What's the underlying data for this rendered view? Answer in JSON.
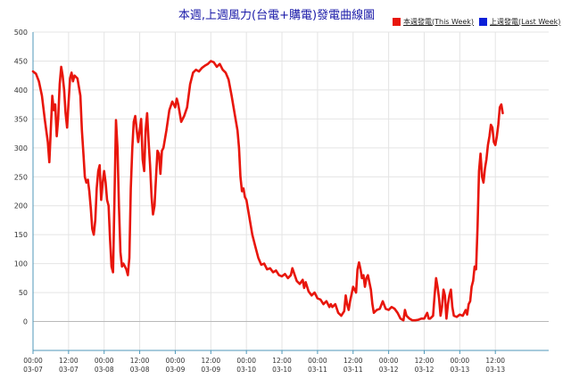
{
  "chart_data": {
    "type": "line",
    "title": "本週,上週風力(台電+購電)發電曲線圖",
    "xlabel": "",
    "ylabel": "",
    "ylim": [
      -50,
      500
    ],
    "yticks": [
      0,
      50,
      100,
      150,
      200,
      250,
      300,
      350,
      400,
      450,
      500
    ],
    "xrange": [
      0,
      174
    ],
    "xticks": [
      {
        "x": 0,
        "time": "00:00",
        "date": "03-07"
      },
      {
        "x": 12,
        "time": "12:00",
        "date": "03-07"
      },
      {
        "x": 24,
        "time": "00:00",
        "date": "03-08"
      },
      {
        "x": 36,
        "time": "12:00",
        "date": "03-08"
      },
      {
        "x": 48,
        "time": "00:00",
        "date": "03-09"
      },
      {
        "x": 60,
        "time": "12:00",
        "date": "03-09"
      },
      {
        "x": 72,
        "time": "00:00",
        "date": "03-10"
      },
      {
        "x": 84,
        "time": "12:00",
        "date": "03-10"
      },
      {
        "x": 96,
        "time": "00:00",
        "date": "03-11"
      },
      {
        "x": 108,
        "time": "12:00",
        "date": "03-11"
      },
      {
        "x": 120,
        "time": "00:00",
        "date": "03-12"
      },
      {
        "x": 132,
        "time": "12:00",
        "date": "03-12"
      },
      {
        "x": 144,
        "time": "00:00",
        "date": "03-13"
      },
      {
        "x": 156,
        "time": "12:00",
        "date": "03-13"
      }
    ],
    "grid": true,
    "legend_position": "top-right",
    "series": [
      {
        "name": "本週發電(This Week)",
        "color": "#e8160c",
        "points": [
          [
            0,
            432
          ],
          [
            1,
            428
          ],
          [
            2,
            415
          ],
          [
            3,
            390
          ],
          [
            4,
            348
          ],
          [
            5,
            310
          ],
          [
            5.5,
            275
          ],
          [
            6,
            330
          ],
          [
            6.5,
            390
          ],
          [
            7,
            365
          ],
          [
            7.5,
            375
          ],
          [
            8,
            320
          ],
          [
            8.5,
            350
          ],
          [
            9,
            410
          ],
          [
            9.5,
            440
          ],
          [
            10,
            425
          ],
          [
            10.5,
            400
          ],
          [
            11,
            360
          ],
          [
            11.5,
            335
          ],
          [
            12,
            380
          ],
          [
            12.5,
            420
          ],
          [
            13,
            430
          ],
          [
            13.5,
            415
          ],
          [
            14,
            425
          ],
          [
            15,
            420
          ],
          [
            16,
            390
          ],
          [
            16.5,
            330
          ],
          [
            17,
            290
          ],
          [
            17.5,
            250
          ],
          [
            18,
            240
          ],
          [
            18.5,
            245
          ],
          [
            19,
            225
          ],
          [
            19.5,
            195
          ],
          [
            20,
            160
          ],
          [
            20.5,
            150
          ],
          [
            21,
            175
          ],
          [
            21.5,
            230
          ],
          [
            22,
            260
          ],
          [
            22.5,
            270
          ],
          [
            23,
            210
          ],
          [
            23.5,
            240
          ],
          [
            24,
            260
          ],
          [
            24.5,
            240
          ],
          [
            25,
            210
          ],
          [
            25.5,
            200
          ],
          [
            26,
            140
          ],
          [
            26.5,
            95
          ],
          [
            27,
            85
          ],
          [
            27.5,
            220
          ],
          [
            28,
            348
          ],
          [
            28.5,
            300
          ],
          [
            29,
            200
          ],
          [
            29.5,
            120
          ],
          [
            30,
            95
          ],
          [
            30.5,
            100
          ],
          [
            31,
            95
          ],
          [
            31.5,
            90
          ],
          [
            32,
            80
          ],
          [
            32.5,
            110
          ],
          [
            33,
            230
          ],
          [
            33.5,
            300
          ],
          [
            34,
            345
          ],
          [
            34.5,
            355
          ],
          [
            35,
            330
          ],
          [
            35.5,
            310
          ],
          [
            36,
            330
          ],
          [
            36.5,
            350
          ],
          [
            37,
            280
          ],
          [
            37.5,
            260
          ],
          [
            38,
            330
          ],
          [
            38.5,
            360
          ],
          [
            39,
            310
          ],
          [
            39.5,
            270
          ],
          [
            40,
            215
          ],
          [
            40.5,
            185
          ],
          [
            41,
            200
          ],
          [
            41.5,
            250
          ],
          [
            42,
            295
          ],
          [
            42.5,
            290
          ],
          [
            43,
            255
          ],
          [
            43.5,
            295
          ],
          [
            44,
            300
          ],
          [
            45,
            330
          ],
          [
            46,
            365
          ],
          [
            47,
            380
          ],
          [
            48,
            370
          ],
          [
            48.5,
            385
          ],
          [
            49,
            375
          ],
          [
            50,
            345
          ],
          [
            51,
            355
          ],
          [
            52,
            370
          ],
          [
            53,
            410
          ],
          [
            54,
            430
          ],
          [
            55,
            435
          ],
          [
            56,
            432
          ],
          [
            57,
            438
          ],
          [
            58,
            442
          ],
          [
            59,
            445
          ],
          [
            60,
            450
          ],
          [
            61,
            448
          ],
          [
            62,
            440
          ],
          [
            63,
            445
          ],
          [
            64,
            435
          ],
          [
            65,
            430
          ],
          [
            66,
            418
          ],
          [
            67,
            390
          ],
          [
            68,
            360
          ],
          [
            69,
            330
          ],
          [
            69.5,
            300
          ],
          [
            70,
            250
          ],
          [
            70.5,
            225
          ],
          [
            71,
            230
          ],
          [
            71.5,
            215
          ],
          [
            72,
            210
          ],
          [
            73,
            180
          ],
          [
            74,
            150
          ],
          [
            75,
            130
          ],
          [
            76,
            110
          ],
          [
            77,
            98
          ],
          [
            78,
            100
          ],
          [
            79,
            90
          ],
          [
            80,
            92
          ],
          [
            81,
            85
          ],
          [
            82,
            88
          ],
          [
            83,
            80
          ],
          [
            84,
            78
          ],
          [
            85,
            82
          ],
          [
            86,
            75
          ],
          [
            87,
            80
          ],
          [
            87.5,
            92
          ],
          [
            88,
            85
          ],
          [
            89,
            70
          ],
          [
            90,
            65
          ],
          [
            91,
            72
          ],
          [
            91.5,
            58
          ],
          [
            92,
            68
          ],
          [
            93,
            52
          ],
          [
            94,
            45
          ],
          [
            95,
            50
          ],
          [
            96,
            40
          ],
          [
            97,
            38
          ],
          [
            98,
            30
          ],
          [
            99,
            35
          ],
          [
            100,
            25
          ],
          [
            100.5,
            30
          ],
          [
            101,
            25
          ],
          [
            102,
            30
          ],
          [
            103,
            15
          ],
          [
            104,
            10
          ],
          [
            105,
            18
          ],
          [
            105.5,
            45
          ],
          [
            106,
            30
          ],
          [
            106.5,
            20
          ],
          [
            107,
            35
          ],
          [
            108,
            60
          ],
          [
            109,
            50
          ],
          [
            109.5,
            90
          ],
          [
            110,
            102
          ],
          [
            110.5,
            90
          ],
          [
            111,
            75
          ],
          [
            111.5,
            80
          ],
          [
            112,
            60
          ],
          [
            112.5,
            75
          ],
          [
            113,
            80
          ],
          [
            114,
            55
          ],
          [
            114.5,
            30
          ],
          [
            115,
            15
          ],
          [
            116,
            20
          ],
          [
            117,
            22
          ],
          [
            118,
            35
          ],
          [
            119,
            22
          ],
          [
            120,
            20
          ],
          [
            121,
            25
          ],
          [
            122,
            22
          ],
          [
            123,
            15
          ],
          [
            124,
            5
          ],
          [
            125,
            2
          ],
          [
            125.5,
            20
          ],
          [
            126,
            10
          ],
          [
            127,
            5
          ],
          [
            128,
            2
          ],
          [
            129,
            2
          ],
          [
            130,
            3
          ],
          [
            131,
            5
          ],
          [
            132,
            5
          ],
          [
            133,
            15
          ],
          [
            133.5,
            5
          ],
          [
            134,
            5
          ],
          [
            135,
            10
          ],
          [
            135.5,
            45
          ],
          [
            136,
            75
          ],
          [
            136.5,
            60
          ],
          [
            137,
            40
          ],
          [
            137.5,
            10
          ],
          [
            138,
            25
          ],
          [
            138.5,
            55
          ],
          [
            139,
            45
          ],
          [
            139.5,
            5
          ],
          [
            140,
            30
          ],
          [
            140.5,
            45
          ],
          [
            141,
            55
          ],
          [
            141.5,
            25
          ],
          [
            142,
            10
          ],
          [
            143,
            8
          ],
          [
            144,
            12
          ],
          [
            145,
            10
          ],
          [
            146,
            20
          ],
          [
            146.5,
            12
          ],
          [
            147,
            30
          ],
          [
            147.5,
            35
          ],
          [
            148,
            60
          ],
          [
            148.5,
            70
          ],
          [
            149,
            95
          ],
          [
            149.5,
            90
          ],
          [
            150,
            165
          ],
          [
            150.5,
            260
          ],
          [
            151,
            290
          ],
          [
            151.5,
            250
          ],
          [
            152,
            240
          ],
          [
            152.5,
            265
          ],
          [
            153,
            280
          ],
          [
            153.5,
            305
          ],
          [
            154,
            320
          ],
          [
            154.5,
            340
          ],
          [
            155,
            335
          ],
          [
            155.5,
            310
          ],
          [
            156,
            305
          ],
          [
            156.5,
            320
          ],
          [
            157,
            340
          ],
          [
            157.5,
            370
          ],
          [
            158,
            375
          ],
          [
            158.5,
            360
          ]
        ]
      },
      {
        "name": "上週發電(Last Week)",
        "color": "#0b1fd8",
        "points": []
      }
    ]
  }
}
